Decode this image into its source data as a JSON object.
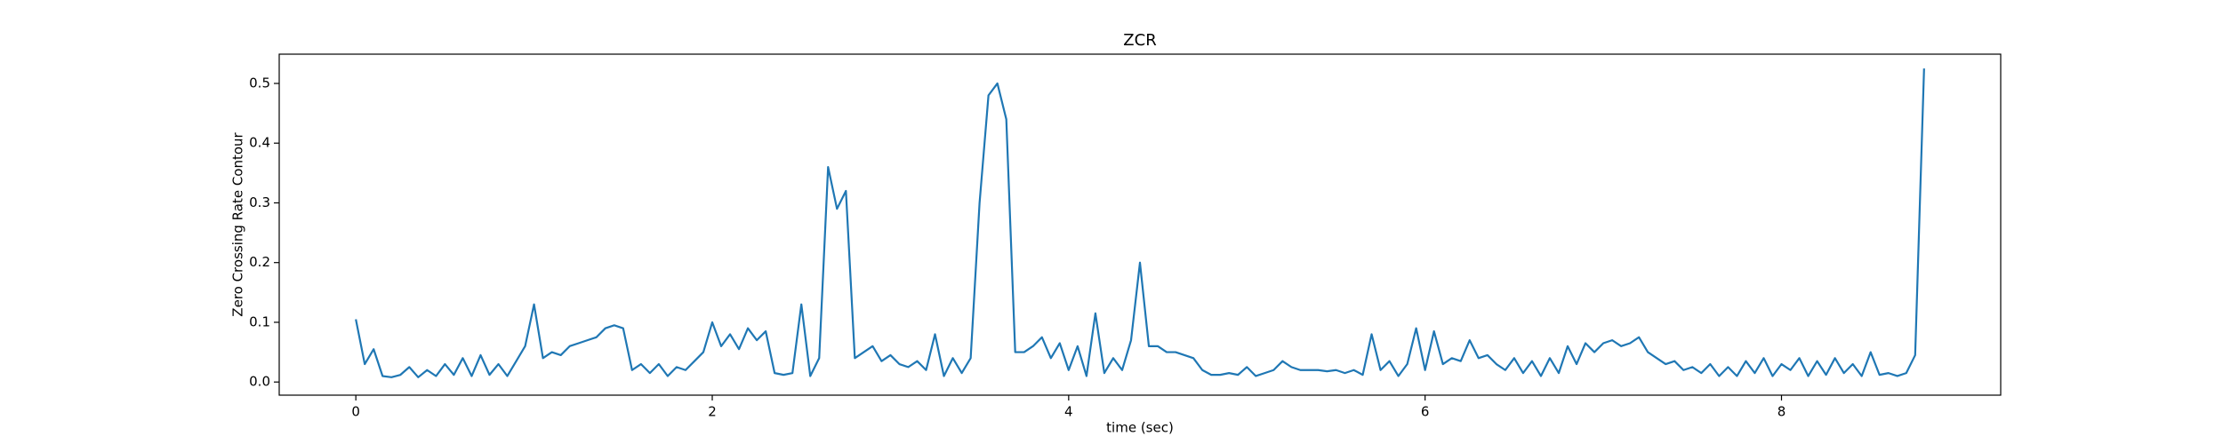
{
  "chart_data": {
    "type": "line",
    "title": "ZCR",
    "xlabel": "time (sec)",
    "ylabel": "Zero Crossing Rate Contour",
    "color": "#1f77b4",
    "x": [
      0,
      0.05,
      0.1,
      0.15,
      0.2,
      0.25,
      0.3,
      0.35,
      0.4,
      0.45,
      0.5,
      0.55,
      0.6,
      0.65,
      0.7,
      0.75,
      0.8,
      0.85,
      0.9,
      0.95,
      1,
      1.05,
      1.1,
      1.15,
      1.2,
      1.25,
      1.3,
      1.35,
      1.4,
      1.45,
      1.5,
      1.55,
      1.6,
      1.65,
      1.7,
      1.75,
      1.8,
      1.85,
      1.9,
      1.95,
      2,
      2.05,
      2.1,
      2.15,
      2.2,
      2.25,
      2.3,
      2.35,
      2.4,
      2.45,
      2.5,
      2.55,
      2.6,
      2.65,
      2.7,
      2.75,
      2.8,
      2.85,
      2.9,
      2.95,
      3,
      3.05,
      3.1,
      3.15,
      3.2,
      3.25,
      3.3,
      3.35,
      3.4,
      3.45,
      3.5,
      3.55,
      3.6,
      3.65,
      3.7,
      3.75,
      3.8,
      3.85,
      3.9,
      3.95,
      4,
      4.05,
      4.1,
      4.15,
      4.2,
      4.25,
      4.3,
      4.35,
      4.4,
      4.45,
      4.5,
      4.55,
      4.6,
      4.65,
      4.7,
      4.75,
      4.8,
      4.85,
      4.9,
      4.95,
      5,
      5.05,
      5.1,
      5.15,
      5.2,
      5.25,
      5.3,
      5.35,
      5.4,
      5.45,
      5.5,
      5.55,
      5.6,
      5.65,
      5.7,
      5.75,
      5.8,
      5.85,
      5.9,
      5.95,
      6,
      6.05,
      6.1,
      6.15,
      6.2,
      6.25,
      6.3,
      6.35,
      6.4,
      6.45,
      6.5,
      6.55,
      6.6,
      6.65,
      6.7,
      6.75,
      6.8,
      6.85,
      6.9,
      6.95,
      7,
      7.05,
      7.1,
      7.15,
      7.2,
      7.25,
      7.3,
      7.35,
      7.4,
      7.45,
      7.5,
      7.55,
      7.6,
      7.65,
      7.7,
      7.75,
      7.8,
      7.85,
      7.9,
      7.95,
      8,
      8.05,
      8.1,
      8.15,
      8.2,
      8.25,
      8.3,
      8.35,
      8.4,
      8.45,
      8.5,
      8.55,
      8.6,
      8.65,
      8.7,
      8.75,
      8.8
    ],
    "values": [
      0.105,
      0.03,
      0.055,
      0.01,
      0.008,
      0.012,
      0.025,
      0.008,
      0.02,
      0.01,
      0.03,
      0.012,
      0.04,
      0.01,
      0.045,
      0.012,
      0.03,
      0.01,
      0.035,
      0.06,
      0.13,
      0.04,
      0.05,
      0.045,
      0.06,
      0.065,
      0.07,
      0.075,
      0.09,
      0.095,
      0.09,
      0.02,
      0.03,
      0.015,
      0.03,
      0.01,
      0.025,
      0.02,
      0.035,
      0.05,
      0.1,
      0.06,
      0.08,
      0.055,
      0.09,
      0.07,
      0.085,
      0.015,
      0.012,
      0.015,
      0.13,
      0.01,
      0.04,
      0.36,
      0.29,
      0.32,
      0.04,
      0.05,
      0.06,
      0.035,
      0.045,
      0.03,
      0.025,
      0.035,
      0.02,
      0.08,
      0.01,
      0.04,
      0.015,
      0.04,
      0.3,
      0.48,
      0.5,
      0.44,
      0.05,
      0.05,
      0.06,
      0.075,
      0.04,
      0.065,
      0.02,
      0.06,
      0.01,
      0.115,
      0.015,
      0.04,
      0.02,
      0.07,
      0.2,
      0.06,
      0.06,
      0.05,
      0.05,
      0.045,
      0.04,
      0.02,
      0.012,
      0.012,
      0.015,
      0.012,
      0.025,
      0.01,
      0.015,
      0.02,
      0.035,
      0.025,
      0.02,
      0.02,
      0.02,
      0.018,
      0.02,
      0.015,
      0.02,
      0.012,
      0.08,
      0.02,
      0.035,
      0.01,
      0.03,
      0.09,
      0.02,
      0.085,
      0.03,
      0.04,
      0.035,
      0.07,
      0.04,
      0.045,
      0.03,
      0.02,
      0.04,
      0.015,
      0.035,
      0.01,
      0.04,
      0.015,
      0.06,
      0.03,
      0.065,
      0.05,
      0.065,
      0.07,
      0.06,
      0.065,
      0.075,
      0.05,
      0.04,
      0.03,
      0.035,
      0.02,
      0.025,
      0.015,
      0.03,
      0.01,
      0.025,
      0.01,
      0.035,
      0.015,
      0.04,
      0.01,
      0.03,
      0.02,
      0.04,
      0.01,
      0.035,
      0.012,
      0.04,
      0.015,
      0.03,
      0.01,
      0.05,
      0.012,
      0.015,
      0.01,
      0.015,
      0.045,
      0.525
    ],
    "xlim": [
      -0.43,
      9.23
    ],
    "ylim": [
      -0.022,
      0.549
    ],
    "xticks": [
      0,
      2,
      4,
      6,
      8
    ],
    "yticks": [
      {
        "value": 0,
        "label": "0.0"
      },
      0.1,
      0.2,
      0.3,
      0.4,
      0.5
    ]
  }
}
